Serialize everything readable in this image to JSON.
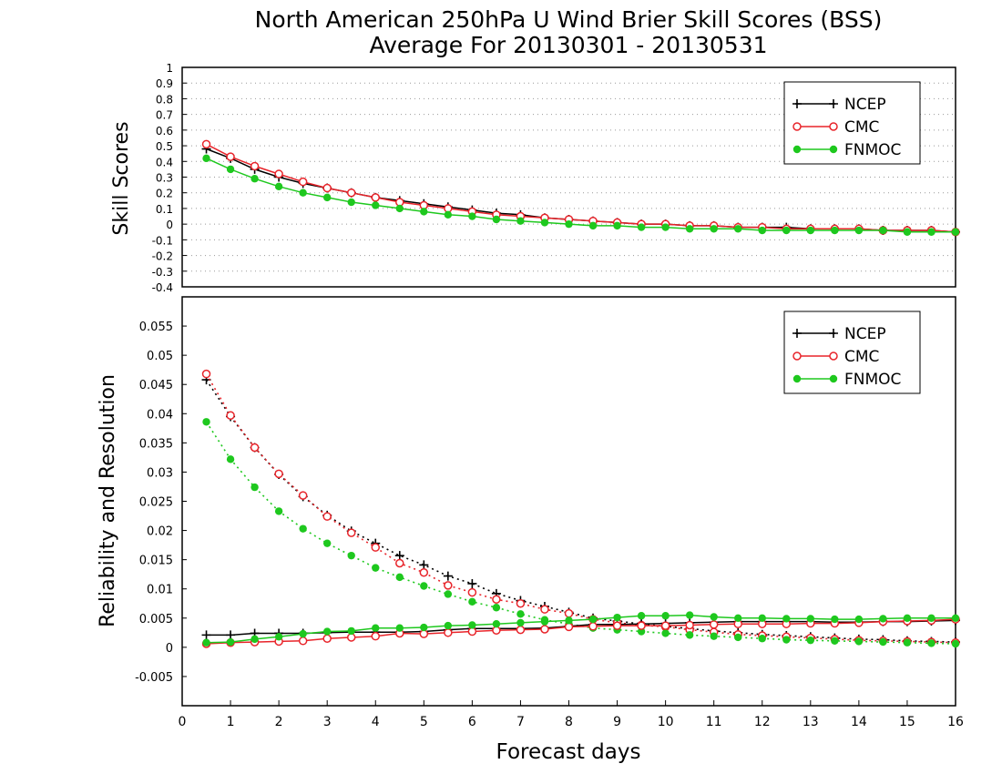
{
  "title": {
    "line1": "North American 250hPa U Wind Brier Skill Scores (BSS)",
    "line2": "Average For 20130301 - 20130531"
  },
  "xlabel": "Forecast days",
  "xticks": [
    "0",
    "1",
    "2",
    "3",
    "4",
    "5",
    "6",
    "7",
    "8",
    "9",
    "10",
    "11",
    "12",
    "13",
    "14",
    "15",
    "16"
  ],
  "colors": {
    "NCEP": "#000000",
    "CMC": "#e8242a",
    "FNMOC": "#1ec81e"
  },
  "chart_data": [
    {
      "type": "line",
      "ylabel": "Skill Scores",
      "xlim": [
        0,
        16
      ],
      "ylim": [
        -0.4,
        1
      ],
      "grid": true,
      "legend": "top-right",
      "yticks": [
        "1",
        "0.9",
        "0.8",
        "0.7",
        "0.6",
        "0.5",
        "0.4",
        "0.3",
        "0.2",
        "0.1",
        "0",
        "-0.1",
        "-0.2",
        "-0.3",
        "-0.4"
      ],
      "x": [
        0.5,
        1,
        1.5,
        2,
        2.5,
        3,
        3.5,
        4,
        4.5,
        5,
        5.5,
        6,
        6.5,
        7,
        7.5,
        8,
        8.5,
        9,
        9.5,
        10,
        10.5,
        11,
        11.5,
        12,
        12.5,
        13,
        13.5,
        14,
        14.5,
        15,
        15.5,
        16
      ],
      "series": [
        {
          "name": "NCEP",
          "marker": "plus",
          "values": [
            0.48,
            0.42,
            0.35,
            0.3,
            0.26,
            0.23,
            0.2,
            0.17,
            0.15,
            0.13,
            0.11,
            0.09,
            0.07,
            0.06,
            0.04,
            0.03,
            0.02,
            0.01,
            0.0,
            0.0,
            -0.01,
            -0.01,
            -0.02,
            -0.02,
            -0.02,
            -0.03,
            -0.03,
            -0.03,
            -0.04,
            -0.04,
            -0.04,
            -0.05
          ]
        },
        {
          "name": "CMC",
          "marker": "open-circle",
          "values": [
            0.51,
            0.43,
            0.37,
            0.32,
            0.27,
            0.23,
            0.2,
            0.17,
            0.14,
            0.12,
            0.1,
            0.08,
            0.06,
            0.05,
            0.04,
            0.03,
            0.02,
            0.01,
            0.0,
            0.0,
            -0.01,
            -0.01,
            -0.02,
            -0.02,
            -0.03,
            -0.03,
            -0.03,
            -0.03,
            -0.04,
            -0.04,
            -0.04,
            -0.05
          ]
        },
        {
          "name": "FNMOC",
          "marker": "filled-circle",
          "values": [
            0.42,
            0.35,
            0.29,
            0.24,
            0.2,
            0.17,
            0.14,
            0.12,
            0.1,
            0.08,
            0.06,
            0.05,
            0.03,
            0.02,
            0.01,
            0.0,
            -0.01,
            -0.01,
            -0.02,
            -0.02,
            -0.03,
            -0.03,
            -0.03,
            -0.04,
            -0.04,
            -0.04,
            -0.04,
            -0.04,
            -0.04,
            -0.05,
            -0.05,
            -0.05
          ]
        }
      ]
    },
    {
      "type": "line",
      "ylabel": "Reliability and Resolution",
      "xlim": [
        0,
        16
      ],
      "ylim": [
        -0.01,
        0.06
      ],
      "grid": false,
      "legend": "top-right",
      "yticks": [
        "0.055",
        "0.05",
        "0.045",
        "0.04",
        "0.035",
        "0.03",
        "0.025",
        "0.02",
        "0.015",
        "0.01",
        "0.005",
        "0",
        "-0.005"
      ],
      "x": [
        0.5,
        1,
        1.5,
        2,
        2.5,
        3,
        3.5,
        4,
        4.5,
        5,
        5.5,
        6,
        6.5,
        7,
        7.5,
        8,
        8.5,
        9,
        9.5,
        10,
        10.5,
        11,
        11.5,
        12,
        12.5,
        13,
        13.5,
        14,
        14.5,
        15,
        15.5,
        16
      ],
      "series": [
        {
          "name": "NCEP",
          "metric": "resolution",
          "style": "dotted",
          "marker": "plus",
          "values": [
            0.0458,
            0.0395,
            0.0342,
            0.0296,
            0.0258,
            0.0226,
            0.0199,
            0.0178,
            0.0157,
            0.0141,
            0.0122,
            0.0109,
            0.0092,
            0.008,
            0.007,
            0.006,
            0.005,
            0.0045,
            0.004,
            0.0036,
            0.0032,
            0.0028,
            0.0025,
            0.0022,
            0.002,
            0.0018,
            0.0016,
            0.0014,
            0.0013,
            0.0011,
            0.001,
            0.0009
          ]
        },
        {
          "name": "CMC",
          "metric": "resolution",
          "style": "dotted",
          "marker": "open-circle",
          "values": [
            0.0468,
            0.0397,
            0.0342,
            0.0297,
            0.026,
            0.0224,
            0.0196,
            0.0171,
            0.0144,
            0.0128,
            0.0106,
            0.0094,
            0.0082,
            0.0075,
            0.0065,
            0.0058,
            0.0048,
            0.0042,
            0.0038,
            0.0035,
            0.003,
            0.0026,
            0.0022,
            0.002,
            0.0018,
            0.0016,
            0.0014,
            0.0012,
            0.0011,
            0.001,
            0.0009,
            0.0008
          ]
        },
        {
          "name": "FNMOC",
          "metric": "resolution",
          "style": "dotted",
          "marker": "filled-circle",
          "values": [
            0.0386,
            0.0322,
            0.0274,
            0.0233,
            0.0203,
            0.0178,
            0.0157,
            0.0136,
            0.012,
            0.0105,
            0.0091,
            0.0078,
            0.0068,
            0.0057,
            0.0047,
            0.004,
            0.0033,
            0.003,
            0.0027,
            0.0024,
            0.0021,
            0.0019,
            0.0017,
            0.0015,
            0.0013,
            0.0012,
            0.0011,
            0.001,
            0.0009,
            0.0008,
            0.0007,
            0.0006
          ]
        },
        {
          "name": "NCEP",
          "metric": "reliability",
          "style": "solid",
          "marker": "plus",
          "values": [
            0.0021,
            0.0021,
            0.0024,
            0.0024,
            0.0024,
            0.0025,
            0.0026,
            0.0026,
            0.0026,
            0.0027,
            0.003,
            0.0032,
            0.0032,
            0.0032,
            0.0033,
            0.0036,
            0.0039,
            0.0039,
            0.004,
            0.0041,
            0.0042,
            0.0043,
            0.0044,
            0.0044,
            0.0044,
            0.0044,
            0.0043,
            0.0043,
            0.0044,
            0.0044,
            0.0045,
            0.0046
          ]
        },
        {
          "name": "CMC",
          "metric": "reliability",
          "style": "solid",
          "marker": "open-circle",
          "values": [
            0.0006,
            0.0008,
            0.0009,
            0.001,
            0.0011,
            0.0015,
            0.0017,
            0.0019,
            0.0024,
            0.0023,
            0.0025,
            0.0027,
            0.0029,
            0.003,
            0.0031,
            0.0035,
            0.0036,
            0.0037,
            0.0037,
            0.0037,
            0.0038,
            0.0039,
            0.004,
            0.004,
            0.004,
            0.0041,
            0.0041,
            0.0042,
            0.0044,
            0.0045,
            0.0046,
            0.0048
          ]
        },
        {
          "name": "FNMOC",
          "metric": "reliability",
          "style": "solid",
          "marker": "filled-circle",
          "values": [
            0.0008,
            0.0009,
            0.0014,
            0.0018,
            0.0023,
            0.0027,
            0.0028,
            0.0033,
            0.0033,
            0.0034,
            0.0037,
            0.0038,
            0.004,
            0.0042,
            0.0044,
            0.0046,
            0.0048,
            0.0051,
            0.0054,
            0.0054,
            0.0055,
            0.0052,
            0.005,
            0.005,
            0.0049,
            0.0049,
            0.0048,
            0.0048,
            0.0049,
            0.005,
            0.005,
            0.005
          ]
        }
      ]
    }
  ]
}
